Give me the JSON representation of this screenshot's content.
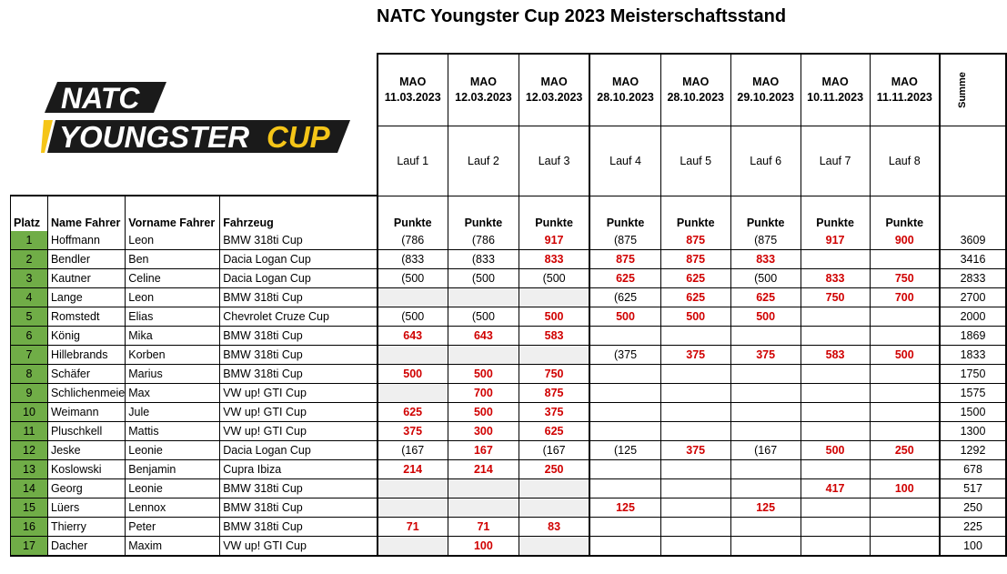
{
  "title": "NATC Youngster Cup 2023 Meisterschaftsstand",
  "logo": {
    "line1": "NATC",
    "line2a": "YOUNGSTER",
    "line2b": "CUP",
    "accent_color": "#f5c518"
  },
  "columns": {
    "platz": "Platz",
    "name": "Name Fahrer",
    "vorname": "Vorname Fahrer",
    "fahrzeug": "Fahrzeug",
    "summe": "Summe",
    "punkte": "Punkte"
  },
  "races": [
    {
      "track": "MAO",
      "date": "11.03.2023",
      "lauf": "Lauf 1"
    },
    {
      "track": "MAO",
      "date": "12.03.2023",
      "lauf": "Lauf 2"
    },
    {
      "track": "MAO",
      "date": "12.03.2023",
      "lauf": "Lauf 3"
    },
    {
      "track": "MAO",
      "date": "28.10.2023",
      "lauf": "Lauf 4"
    },
    {
      "track": "MAO",
      "date": "28.10.2023",
      "lauf": "Lauf 5"
    },
    {
      "track": "MAO",
      "date": "29.10.2023",
      "lauf": "Lauf 6"
    },
    {
      "track": "MAO",
      "date": "10.11.2023",
      "lauf": "Lauf 7"
    },
    {
      "track": "MAO",
      "date": "11.11.2023",
      "lauf": "Lauf 8"
    }
  ],
  "rows": [
    {
      "platz": "1",
      "name": "Hoffmann",
      "vorname": "Leon",
      "fahrzeug": "BMW 318ti Cup",
      "points": [
        "(786",
        "(786",
        "917",
        "(875",
        "875",
        "(875",
        "917",
        "900"
      ],
      "summe": "3609"
    },
    {
      "platz": "2",
      "name": "Bendler",
      "vorname": "Ben",
      "fahrzeug": "Dacia Logan Cup",
      "points": [
        "(833",
        "(833",
        "833",
        "875",
        "875",
        "833",
        "",
        ""
      ],
      "summe": "3416"
    },
    {
      "platz": "3",
      "name": "Kautner",
      "vorname": "Celine",
      "fahrzeug": "Dacia Logan Cup",
      "points": [
        "(500",
        "(500",
        "(500",
        "625",
        "625",
        "(500",
        "833",
        "750"
      ],
      "summe": "2833"
    },
    {
      "platz": "4",
      "name": "Lange",
      "vorname": "Leon",
      "fahrzeug": "BMW 318ti Cup",
      "points": [
        "",
        "",
        "",
        "(625",
        "625",
        "625",
        "750",
        "700"
      ],
      "summe": "2700"
    },
    {
      "platz": "5",
      "name": "Romstedt",
      "vorname": "Elias",
      "fahrzeug": "Chevrolet Cruze Cup",
      "points": [
        "(500",
        "(500",
        "500",
        "500",
        "500",
        "500",
        "",
        ""
      ],
      "summe": "2000"
    },
    {
      "platz": "6",
      "name": "König",
      "vorname": "Mika",
      "fahrzeug": "BMW 318ti Cup",
      "points": [
        "643",
        "643",
        "583",
        "",
        "",
        "",
        "",
        ""
      ],
      "summe": "1869"
    },
    {
      "platz": "7",
      "name": "Hillebrands",
      "vorname": "Korben",
      "fahrzeug": "BMW 318ti Cup",
      "points": [
        "",
        "",
        "",
        "(375",
        "375",
        "375",
        "583",
        "500"
      ],
      "summe": "1833"
    },
    {
      "platz": "8",
      "name": "Schäfer",
      "vorname": "Marius",
      "fahrzeug": "BMW 318ti Cup",
      "points": [
        "500",
        "500",
        "750",
        "",
        "",
        "",
        "",
        ""
      ],
      "summe": "1750"
    },
    {
      "platz": "9",
      "name": "Schlichenmeie",
      "vorname": "Max",
      "fahrzeug": "VW up! GTI Cup",
      "points": [
        "",
        "700",
        "875",
        "",
        "",
        "",
        "",
        ""
      ],
      "summe": "1575"
    },
    {
      "platz": "10",
      "name": "Weimann",
      "vorname": "Jule",
      "fahrzeug": "VW up! GTI Cup",
      "points": [
        "625",
        "500",
        "375",
        "",
        "",
        "",
        "",
        ""
      ],
      "summe": "1500"
    },
    {
      "platz": "11",
      "name": "Pluschkell",
      "vorname": "Mattis",
      "fahrzeug": "VW up! GTI Cup",
      "points": [
        "375",
        "300",
        "625",
        "",
        "",
        "",
        "",
        ""
      ],
      "summe": "1300"
    },
    {
      "platz": "12",
      "name": "Jeske",
      "vorname": "Leonie",
      "fahrzeug": "Dacia Logan Cup",
      "points": [
        "(167",
        "167",
        "(167",
        "(125",
        "375",
        "(167",
        "500",
        "250"
      ],
      "summe": "1292"
    },
    {
      "platz": "13",
      "name": "Koslowski",
      "vorname": "Benjamin",
      "fahrzeug": "Cupra Ibiza",
      "points": [
        "214",
        "214",
        "250",
        "",
        "",
        "",
        "",
        ""
      ],
      "summe": "678"
    },
    {
      "platz": "14",
      "name": "Georg",
      "vorname": "Leonie",
      "fahrzeug": "BMW 318ti Cup",
      "points": [
        "",
        "",
        "",
        "",
        "",
        "",
        "417",
        "100"
      ],
      "summe": "517"
    },
    {
      "platz": "15",
      "name": "Lüers",
      "vorname": "Lennox",
      "fahrzeug": "BMW 318ti Cup",
      "points": [
        "",
        "",
        "",
        "125",
        "",
        "125",
        "",
        ""
      ],
      "summe": "250"
    },
    {
      "platz": "16",
      "name": "Thierry",
      "vorname": "Peter",
      "fahrzeug": "BMW 318ti Cup",
      "points": [
        "71",
        "71",
        "83",
        "",
        "",
        "",
        "",
        ""
      ],
      "summe": "225"
    },
    {
      "platz": "17",
      "name": "Dacher",
      "vorname": "Maxim",
      "fahrzeug": "VW up! GTI Cup",
      "points": [
        "",
        "100",
        "",
        "",
        "",
        "",
        "",
        ""
      ],
      "summe": "100"
    }
  ]
}
